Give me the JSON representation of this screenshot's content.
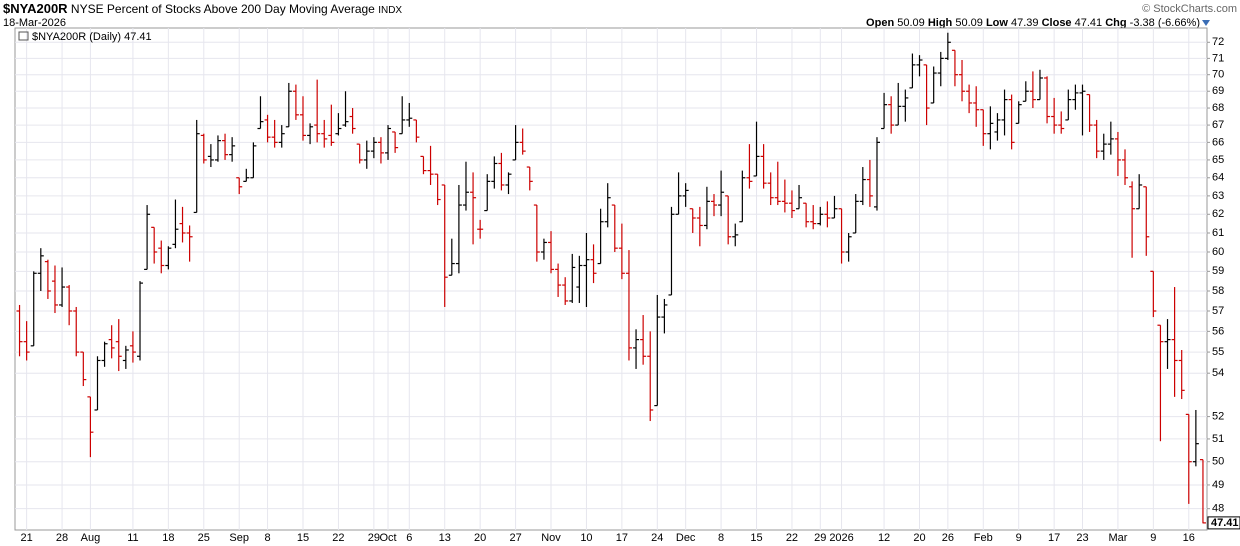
{
  "header": {
    "symbol": "$NYA200R",
    "name": "NYSE Percent of Stocks Above 200 Day Moving Average",
    "exchange": "INDX",
    "date": "18-Mar-2026",
    "copyright": "© StockCharts.com",
    "quote_labels": [
      "Open",
      "High",
      "Low",
      "Close",
      "Chg"
    ],
    "change": -3.38,
    "change_pct": "(-6.66%)"
  },
  "chart_data": {
    "type": "ohlc",
    "legend": "$NYA200R (Daily)",
    "log": true,
    "grid": true,
    "up_color": "#000000",
    "down_color": "#cc0000",
    "ylim": [
      47.2,
      72.9
    ],
    "yticks": [
      48,
      49,
      50,
      51,
      52,
      54,
      55,
      56,
      57,
      58,
      59,
      60,
      61,
      62,
      63,
      64,
      65,
      66,
      67,
      68,
      69,
      70,
      71,
      72
    ],
    "categories": [
      null,
      "21",
      null,
      null,
      null,
      null,
      "28",
      null,
      null,
      null,
      "Aug",
      null,
      null,
      null,
      null,
      null,
      "11",
      null,
      null,
      null,
      null,
      "18",
      null,
      null,
      null,
      null,
      "25",
      null,
      null,
      null,
      null,
      "Sep",
      null,
      null,
      null,
      "8",
      null,
      null,
      null,
      null,
      "15",
      null,
      null,
      null,
      null,
      "22",
      null,
      null,
      null,
      null,
      "29",
      null,
      "Oct",
      null,
      null,
      "6",
      null,
      null,
      null,
      null,
      "13",
      null,
      null,
      null,
      null,
      "20",
      null,
      null,
      null,
      null,
      "27",
      null,
      null,
      null,
      null,
      "Nov",
      null,
      null,
      null,
      null,
      "10",
      null,
      null,
      null,
      null,
      "17",
      null,
      null,
      null,
      null,
      "24",
      null,
      null,
      null,
      "Dec",
      null,
      null,
      null,
      null,
      "8",
      null,
      null,
      null,
      null,
      "15",
      null,
      null,
      null,
      null,
      "22",
      null,
      null,
      null,
      "29",
      null,
      null,
      "2026",
      null,
      null,
      null,
      null,
      null,
      "12",
      null,
      null,
      null,
      null,
      "20",
      null,
      null,
      null,
      "26",
      null,
      null,
      null,
      null,
      "Feb",
      null,
      null,
      null,
      null,
      "9",
      null,
      null,
      null,
      null,
      "17",
      null,
      null,
      null,
      "23",
      null,
      null,
      null,
      null,
      "Mar",
      null,
      null,
      null,
      null,
      "9",
      null,
      null,
      null,
      null,
      "16",
      null,
      null
    ],
    "ohlc": [
      [
        57,
        57.3,
        54.8,
        55.5
      ],
      [
        55.5,
        56.5,
        54.6,
        55
      ],
      [
        55.3,
        59,
        55.3,
        58.9
      ],
      [
        58.9,
        60.2,
        58,
        59.8
      ],
      [
        59.5,
        59.6,
        57.6,
        58
      ],
      [
        58.5,
        59.3,
        56.9,
        57.3
      ],
      [
        57.3,
        59.2,
        57.2,
        58.2
      ],
      [
        58.2,
        58.3,
        56.3,
        57
      ],
      [
        57,
        57.2,
        54.8,
        55
      ],
      [
        55,
        55,
        53.4,
        53.7
      ],
      [
        52.9,
        52.9,
        50.2,
        51.3
      ],
      [
        52.3,
        54.8,
        52.3,
        54.6
      ],
      [
        54.6,
        55.5,
        54.3,
        55.4
      ],
      [
        55.6,
        56.3,
        54.7,
        55.2
      ],
      [
        55.5,
        56.6,
        54.1,
        54.8
      ],
      [
        54.6,
        55.3,
        54.2,
        55.1
      ],
      [
        55.3,
        56,
        54.5,
        55
      ],
      [
        54.8,
        58.5,
        54.6,
        58.4
      ],
      [
        59.1,
        62.5,
        59.1,
        62
      ],
      [
        61.3,
        61.3,
        59.4,
        60
      ],
      [
        60.2,
        60.6,
        58.9,
        59.3
      ],
      [
        59.3,
        60.3,
        59.1,
        60.2
      ],
      [
        60.4,
        62.8,
        60.2,
        61.2
      ],
      [
        61.5,
        62.4,
        60.5,
        61
      ],
      [
        61,
        61.4,
        59.5,
        60.8
      ],
      [
        62.1,
        67.3,
        62.1,
        66.5
      ],
      [
        66.4,
        66.5,
        64.8,
        65
      ],
      [
        65.2,
        65.9,
        64.6,
        65
      ],
      [
        65,
        66.4,
        64.9,
        66.1
      ],
      [
        66.1,
        66.5,
        65,
        65.3
      ],
      [
        65.3,
        66.3,
        64.9,
        65.8
      ],
      [
        64,
        64,
        63.1,
        63.5
      ],
      [
        63.8,
        64.5,
        63.8,
        64
      ],
      [
        64,
        66,
        64,
        65.8
      ],
      [
        66.8,
        68.7,
        66.8,
        67.2
      ],
      [
        67.3,
        67.6,
        66,
        66.3
      ],
      [
        66.3,
        67.3,
        65.7,
        66
      ],
      [
        66,
        67,
        65.7,
        66.5
      ],
      [
        66.9,
        69.5,
        66.9,
        69
      ],
      [
        69,
        69.4,
        67.3,
        67.6
      ],
      [
        67.6,
        68.7,
        66.1,
        66.4
      ],
      [
        66.4,
        67.1,
        65.9,
        66.9
      ],
      [
        67,
        69.7,
        66,
        66.5
      ],
      [
        66.5,
        67.3,
        65.7,
        66.2
      ],
      [
        66.4,
        68.2,
        65.8,
        66
      ],
      [
        66.5,
        67.7,
        66.4,
        66.8
      ],
      [
        67,
        69,
        66.9,
        67.2
      ],
      [
        67.5,
        68,
        66.5,
        66.8
      ],
      [
        65.9,
        65.9,
        64.8,
        65
      ],
      [
        65,
        66.1,
        64.5,
        65.5
      ],
      [
        65.5,
        66.3,
        65.1,
        66
      ],
      [
        66,
        66.3,
        64.8,
        65.4
      ],
      [
        65.4,
        67,
        65,
        66.8
      ],
      [
        66.6,
        66.6,
        65.4,
        65.7
      ],
      [
        66.5,
        68.7,
        66.5,
        67.3
      ],
      [
        67.3,
        68.3,
        66.9,
        67.4
      ],
      [
        67.3,
        67.3,
        66,
        66.3
      ],
      [
        65.2,
        65.2,
        64.2,
        64.4
      ],
      [
        64.4,
        65.8,
        63.6,
        64.2
      ],
      [
        64.2,
        64.2,
        62.5,
        62.8
      ],
      [
        63.6,
        63.6,
        57.2,
        58.7
      ],
      [
        58.8,
        60.7,
        58.8,
        59.4
      ],
      [
        59.4,
        63.6,
        58.9,
        62.5
      ],
      [
        62.5,
        64.9,
        62.2,
        63.2
      ],
      [
        63.2,
        64.3,
        60.4,
        62.9
      ],
      [
        61.2,
        61.7,
        60.7,
        61.2
      ],
      [
        62.2,
        64.2,
        62.2,
        63.8
      ],
      [
        63.8,
        65.2,
        63.4,
        64.8
      ],
      [
        64.8,
        65.4,
        63.3,
        63.6
      ],
      [
        63.6,
        64.3,
        63.1,
        64.2
      ],
      [
        65,
        67,
        65,
        66
      ],
      [
        66,
        66.8,
        65.3,
        65.5
      ],
      [
        64.6,
        64.6,
        63.3,
        63.8
      ],
      [
        62.5,
        62.5,
        59.5,
        60
      ],
      [
        60,
        60.7,
        59.6,
        60.5
      ],
      [
        60.5,
        61.1,
        58.9,
        59.1
      ],
      [
        59.1,
        59.4,
        57.7,
        58.3
      ],
      [
        58.3,
        58.7,
        57.3,
        57.5
      ],
      [
        57.5,
        59.9,
        57.4,
        59.2
      ],
      [
        58.2,
        59.8,
        57.4,
        59.3
      ],
      [
        59.3,
        61,
        57.2,
        59.6
      ],
      [
        59.6,
        60.4,
        58.4,
        58.9
      ],
      [
        59.4,
        62.3,
        59.4,
        61.6
      ],
      [
        61.6,
        63.7,
        61.3,
        62.9
      ],
      [
        62.5,
        62.5,
        60,
        60.2
      ],
      [
        60.2,
        61.5,
        58.6,
        58.9
      ],
      [
        58.9,
        60.1,
        54.6,
        55.2
      ],
      [
        55.2,
        56.1,
        54.2,
        55.6
      ],
      [
        55.6,
        56.8,
        54.4,
        54.8
      ],
      [
        54.8,
        56,
        51.8,
        52.3
      ],
      [
        52.5,
        57.8,
        52.5,
        56.7
      ],
      [
        56.7,
        57.6,
        55.9,
        57.3
      ],
      [
        57.8,
        62.4,
        57.8,
        62
      ],
      [
        62,
        64.3,
        62,
        63
      ],
      [
        63,
        63.7,
        62.4,
        63.3
      ],
      [
        62.3,
        62.3,
        61,
        61.8
      ],
      [
        61.8,
        62.4,
        60.3,
        61.4
      ],
      [
        61.4,
        63.5,
        61.2,
        62.7
      ],
      [
        62.7,
        63.1,
        61.9,
        62.5
      ],
      [
        62.5,
        64.4,
        61.9,
        63.2
      ],
      [
        63,
        63,
        60.4,
        60.8
      ],
      [
        60.8,
        61.5,
        60.3,
        60.9
      ],
      [
        61.6,
        64.4,
        61.6,
        64
      ],
      [
        64,
        65.9,
        63.4,
        63.8
      ],
      [
        64.1,
        67.2,
        64.1,
        65.2
      ],
      [
        65.2,
        65.9,
        63.4,
        63.7
      ],
      [
        63.7,
        64.3,
        62.5,
        62.9
      ],
      [
        62.9,
        64.9,
        62.5,
        62.7
      ],
      [
        62.7,
        63.9,
        62.1,
        62.6
      ],
      [
        62.6,
        63.3,
        61.8,
        62.2
      ],
      [
        62.3,
        63.6,
        62.3,
        62.9
      ],
      [
        62.6,
        62.6,
        61.3,
        61.6
      ],
      [
        61.6,
        62.5,
        61.2,
        61.5
      ],
      [
        61.5,
        62.4,
        61.4,
        62
      ],
      [
        62,
        62.7,
        61.3,
        61.8
      ],
      [
        61.8,
        63,
        61.8,
        62.3
      ],
      [
        62.3,
        62.3,
        59.4,
        60
      ],
      [
        60,
        61,
        59.5,
        60.8
      ],
      [
        61,
        63.1,
        61,
        62.7
      ],
      [
        62.7,
        64.6,
        62.5,
        63.9
      ],
      [
        63.9,
        65,
        62.4,
        63
      ],
      [
        62.4,
        66.3,
        62.2,
        66
      ],
      [
        66.8,
        68.9,
        66.8,
        68.2
      ],
      [
        68.2,
        68.7,
        66.5,
        67
      ],
      [
        67,
        69.5,
        67,
        68.1
      ],
      [
        68.1,
        69.1,
        67.2,
        68.6
      ],
      [
        69.2,
        71.3,
        69.2,
        70.6
      ],
      [
        70.6,
        71.2,
        69.9,
        70.9
      ],
      [
        70.6,
        70.6,
        67,
        68
      ],
      [
        68.3,
        70.5,
        68.3,
        70.1
      ],
      [
        70.1,
        71.4,
        69.3,
        71
      ],
      [
        71,
        72.6,
        70.9,
        72
      ],
      [
        71.5,
        71.5,
        69.3,
        70
      ],
      [
        70,
        70.9,
        68.4,
        69
      ],
      [
        69,
        69.4,
        67.7,
        68.3
      ],
      [
        68.3,
        69.3,
        66.9,
        67.9
      ],
      [
        67.9,
        67.9,
        65.8,
        66.5
      ],
      [
        66.5,
        68.1,
        65.6,
        67.1
      ],
      [
        66.6,
        67.7,
        66.1,
        67.3
      ],
      [
        67.3,
        69.1,
        66.4,
        68.5
      ],
      [
        68.5,
        68.8,
        65.6,
        66
      ],
      [
        67.1,
        68.4,
        67.1,
        68.2
      ],
      [
        68.4,
        69.6,
        68.4,
        69
      ],
      [
        69,
        70.2,
        68,
        68.5
      ],
      [
        68.5,
        70.3,
        68.5,
        69.8
      ],
      [
        69.8,
        69.9,
        67.1,
        67.5
      ],
      [
        67.5,
        68.6,
        66.5,
        67
      ],
      [
        67,
        67.8,
        66.5,
        66.8
      ],
      [
        67.3,
        69.1,
        67.3,
        68.5
      ],
      [
        68.5,
        69.4,
        67.9,
        68.9
      ],
      [
        68.9,
        69.4,
        66.4,
        69
      ],
      [
        68.8,
        68.8,
        66.6,
        67
      ],
      [
        67,
        67.3,
        65.1,
        65.5
      ],
      [
        65.5,
        66.5,
        65,
        65.9
      ],
      [
        65.9,
        67.2,
        65.3,
        66.2
      ],
      [
        66.2,
        66.6,
        64.1,
        65
      ],
      [
        65,
        65.6,
        63.6,
        64
      ],
      [
        63.5,
        63.8,
        59.7,
        62.3
      ],
      [
        62.3,
        64.2,
        62.3,
        63.6
      ],
      [
        63.5,
        63.5,
        59.8,
        60.8
      ],
      [
        59,
        59,
        56.7,
        57
      ],
      [
        56.3,
        56.3,
        50.9,
        55.5
      ],
      [
        55.5,
        56.6,
        54.2,
        55.6
      ],
      [
        55.6,
        58.2,
        52.9,
        54.6
      ],
      [
        54.6,
        55.1,
        52.8,
        53.2
      ],
      [
        52.1,
        52.1,
        48.2,
        50
      ],
      [
        50,
        52.3,
        49.8,
        50.79
      ],
      [
        50.09,
        50.09,
        47.39,
        47.41
      ]
    ]
  }
}
